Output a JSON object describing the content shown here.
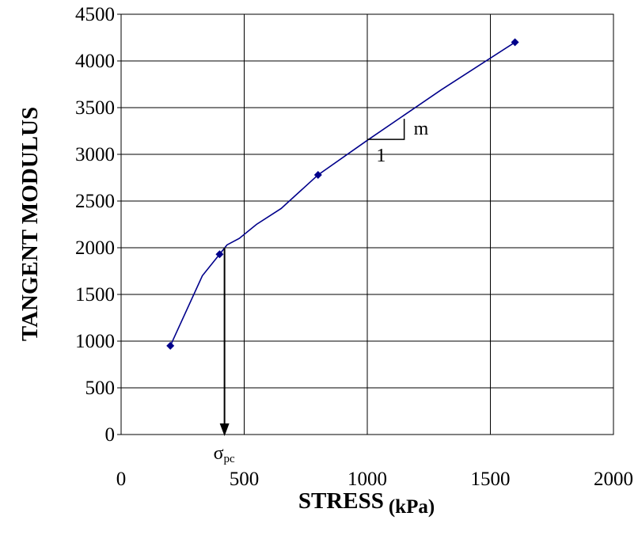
{
  "chart_data": {
    "type": "line",
    "xlabel": "STRESS",
    "xlabel_unit": "(kPa)",
    "ylabel": "TANGENT MODULUS",
    "xlim": [
      0,
      2000
    ],
    "ylim": [
      0,
      4500
    ],
    "x_ticks": [
      0,
      500,
      1000,
      1500,
      2000
    ],
    "y_ticks": [
      0,
      500,
      1000,
      1500,
      2000,
      2500,
      3000,
      3500,
      4000,
      4500
    ],
    "grid": true,
    "series": [
      {
        "points": [
          {
            "x": 200,
            "y": 950
          },
          {
            "x": 400,
            "y": 1930
          },
          {
            "x": 800,
            "y": 2780
          },
          {
            "x": 1600,
            "y": 4200
          }
        ],
        "fit_curve": [
          {
            "x": 200,
            "y": 950
          },
          {
            "x": 330,
            "y": 1700
          },
          {
            "x": 400,
            "y": 1930
          },
          {
            "x": 430,
            "y": 2030
          },
          {
            "x": 480,
            "y": 2100
          },
          {
            "x": 550,
            "y": 2250
          },
          {
            "x": 650,
            "y": 2420
          },
          {
            "x": 800,
            "y": 2780
          },
          {
            "x": 1000,
            "y": 3150
          },
          {
            "x": 1300,
            "y": 3690
          },
          {
            "x": 1600,
            "y": 4200
          }
        ],
        "color": "#00008b"
      }
    ],
    "annotations": {
      "sigma_label": "σ",
      "sigma_subscript": "pc",
      "sigma_pc_x": 420,
      "sigma_arrow_from_y": 2000,
      "sigma_arrow_to_y": 0,
      "slope_rise_label": "m",
      "slope_run_label": "1",
      "slope_x0": 1000,
      "slope_x1": 1150,
      "slope_y0": 3160,
      "slope_y1": 3380
    }
  }
}
